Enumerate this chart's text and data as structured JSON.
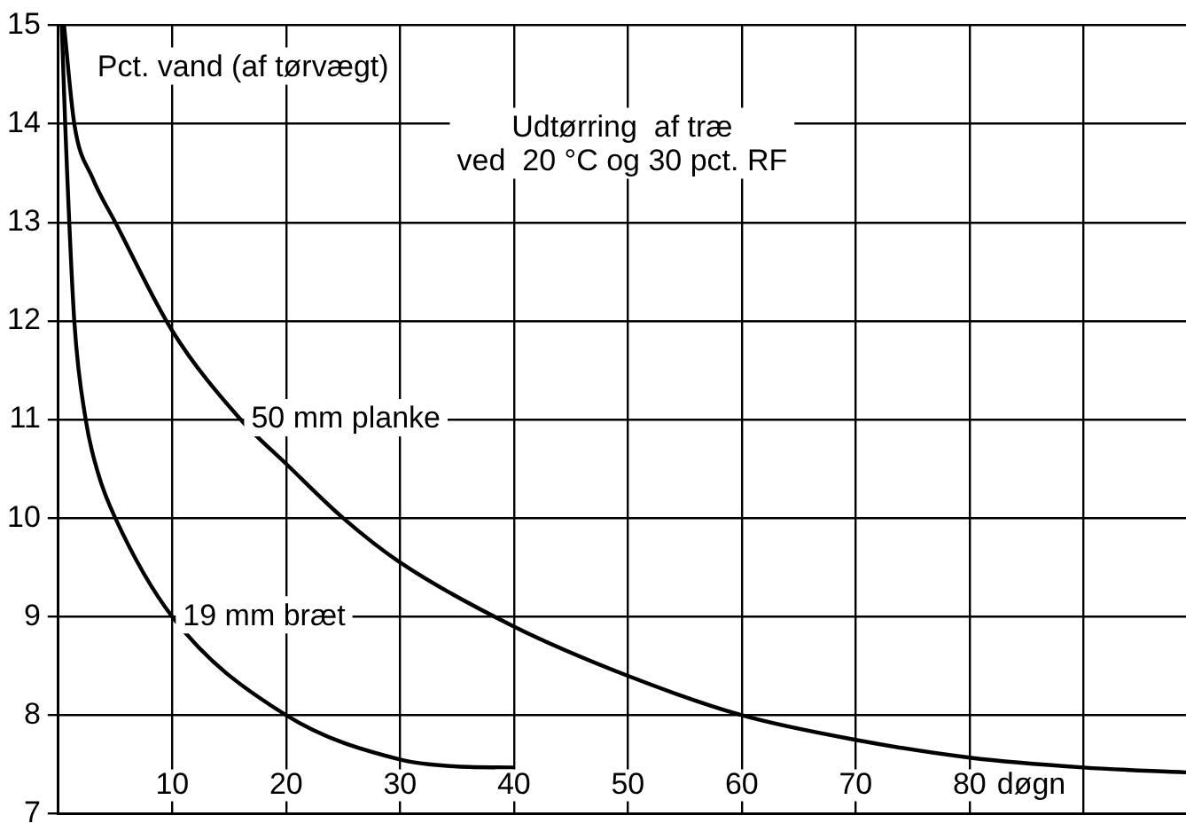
{
  "chart_data": {
    "type": "line",
    "title": "Udtørring  af træ\nved  20 °C og 30 pct. RF",
    "ylabel": "Pct. vand (af tørvægt)",
    "xlabel": "døgn",
    "xlim": [
      0,
      99
    ],
    "xticks": [
      10,
      20,
      30,
      40,
      50,
      60,
      70,
      80,
      {
        "value": 90,
        "label": null
      }
    ],
    "ylim": [
      7,
      15
    ],
    "yticks": [
      7,
      8,
      9,
      10,
      11,
      12,
      13,
      14,
      15
    ],
    "grid": true,
    "legend": false,
    "marker": "none",
    "line_style": "solid",
    "series": [
      {
        "name": "50 mm planke",
        "color": "#000000",
        "x": [
          0.5,
          1.4,
          3,
          5,
          10,
          16,
          20,
          25,
          30,
          40,
          50,
          60,
          70,
          80,
          90,
          99
        ],
        "values": [
          15,
          14,
          13.45,
          13,
          11.9,
          11,
          10.55,
          10,
          9.55,
          8.9,
          8.4,
          8,
          7.75,
          7.57,
          7.47,
          7.42
        ]
      },
      {
        "name": "19 mm bræt",
        "color": "#000000",
        "x": [
          0.3,
          0.6,
          1.4,
          2.4,
          3.5,
          5,
          10,
          20,
          30,
          35,
          40
        ],
        "values": [
          15,
          14,
          12,
          11,
          10.45,
          10,
          9,
          8,
          7.55,
          7.48,
          7.47
        ]
      }
    ]
  }
}
